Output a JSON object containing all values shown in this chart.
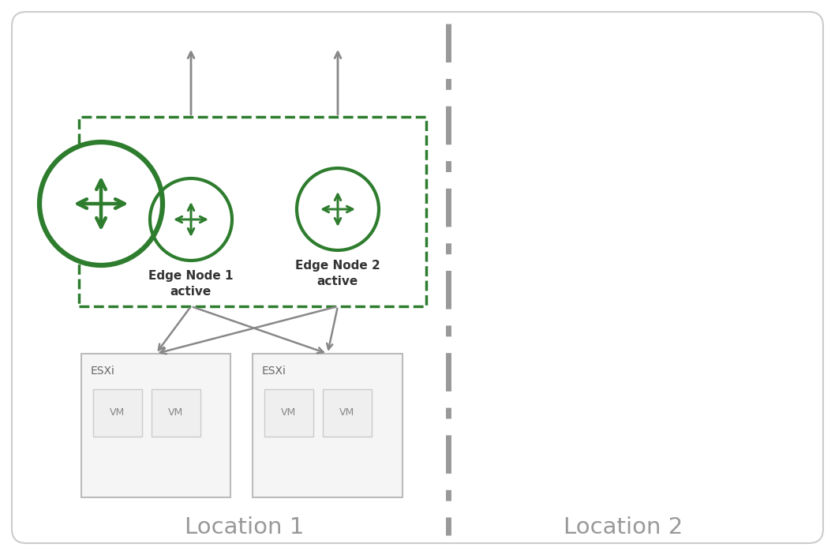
{
  "bg_color": "#ffffff",
  "border_color": "#cccccc",
  "green_color": "#2e7d2e",
  "dashed_box_color": "#2e7d2e",
  "esxi_box_color": "#bbbbbb",
  "esxi_fill": "#f5f5f5",
  "vm_box_color": "#cccccc",
  "vm_fill": "#efefef",
  "arrow_color": "#888888",
  "loc_text_color": "#999999",
  "node_text_color": "#333333",
  "divider_color": "#999999",
  "location1_label": "Location 1",
  "location2_label": "Location 2",
  "edge_node1_label": "Edge Node 1\nactive",
  "edge_node2_label": "Edge Node 2\nactive",
  "esxi_label": "ESXi",
  "vm_label": "VM",
  "fig_w": 10.58,
  "fig_h": 7.03,
  "dpi": 100
}
